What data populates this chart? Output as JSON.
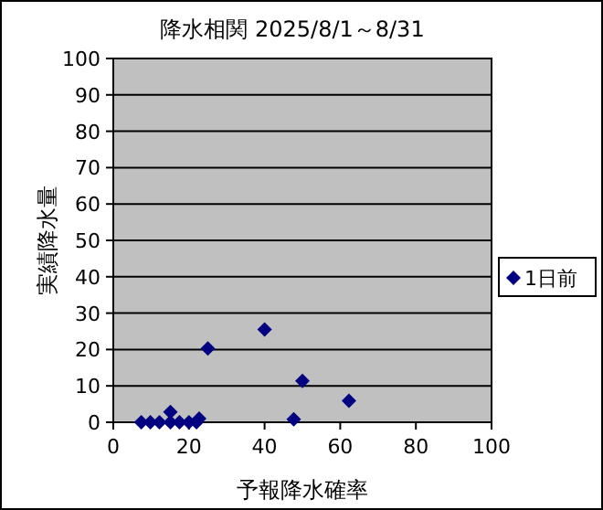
{
  "chart_data": {
    "type": "scatter",
    "title": "降水相関 2025/8/1～8/31",
    "xlabel": "予報降水確率",
    "ylabel": "実績降水量",
    "series": [
      {
        "name": "1日前",
        "color": "#000080",
        "x": [
          7.4,
          9.8,
          12.2,
          15.1,
          15.1,
          17.5,
          20,
          22,
          22.7,
          25,
          40,
          47.7,
          50,
          62.3
        ],
        "values": [
          0,
          0,
          0,
          0,
          2.8,
          0,
          0,
          0,
          1,
          20.3,
          25.5,
          0.8,
          11.4,
          5.9
        ]
      }
    ],
    "xlim": [
      0,
      100
    ],
    "xticks": [
      0,
      20,
      40,
      60,
      80,
      100
    ],
    "ylim": [
      0,
      100
    ],
    "yticks": [
      0,
      10,
      20,
      30,
      40,
      50,
      60,
      70,
      80,
      90,
      100
    ],
    "grid": "y",
    "legend": "right",
    "marker": "diamond"
  }
}
